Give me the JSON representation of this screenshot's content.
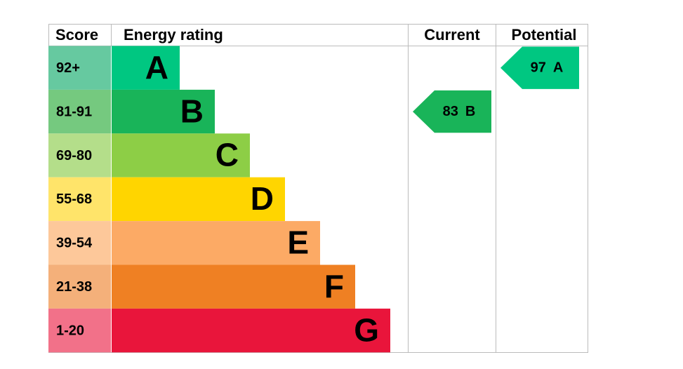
{
  "header": {
    "score": "Score",
    "rating": "Energy rating",
    "current": "Current",
    "potential": "Potential"
  },
  "bands": [
    {
      "score": "92+",
      "letter": "A",
      "color": "#00c781",
      "score_color": "#66c9a0"
    },
    {
      "score": "81-91",
      "letter": "B",
      "color": "#19b459",
      "score_color": "#75c97f"
    },
    {
      "score": "69-80",
      "letter": "C",
      "color": "#8dce46",
      "score_color": "#b4de8a"
    },
    {
      "score": "55-68",
      "letter": "D",
      "color": "#ffd500",
      "score_color": "#ffe46a"
    },
    {
      "score": "39-54",
      "letter": "E",
      "color": "#fcaa65",
      "score_color": "#fdc89a"
    },
    {
      "score": "21-38",
      "letter": "F",
      "color": "#ef8023",
      "score_color": "#f4b07a"
    },
    {
      "score": "1-20",
      "letter": "G",
      "color": "#e9153b",
      "score_color": "#f27189"
    }
  ],
  "current": {
    "value": 83,
    "letter": "B"
  },
  "potential": {
    "value": 97,
    "letter": "A"
  }
}
